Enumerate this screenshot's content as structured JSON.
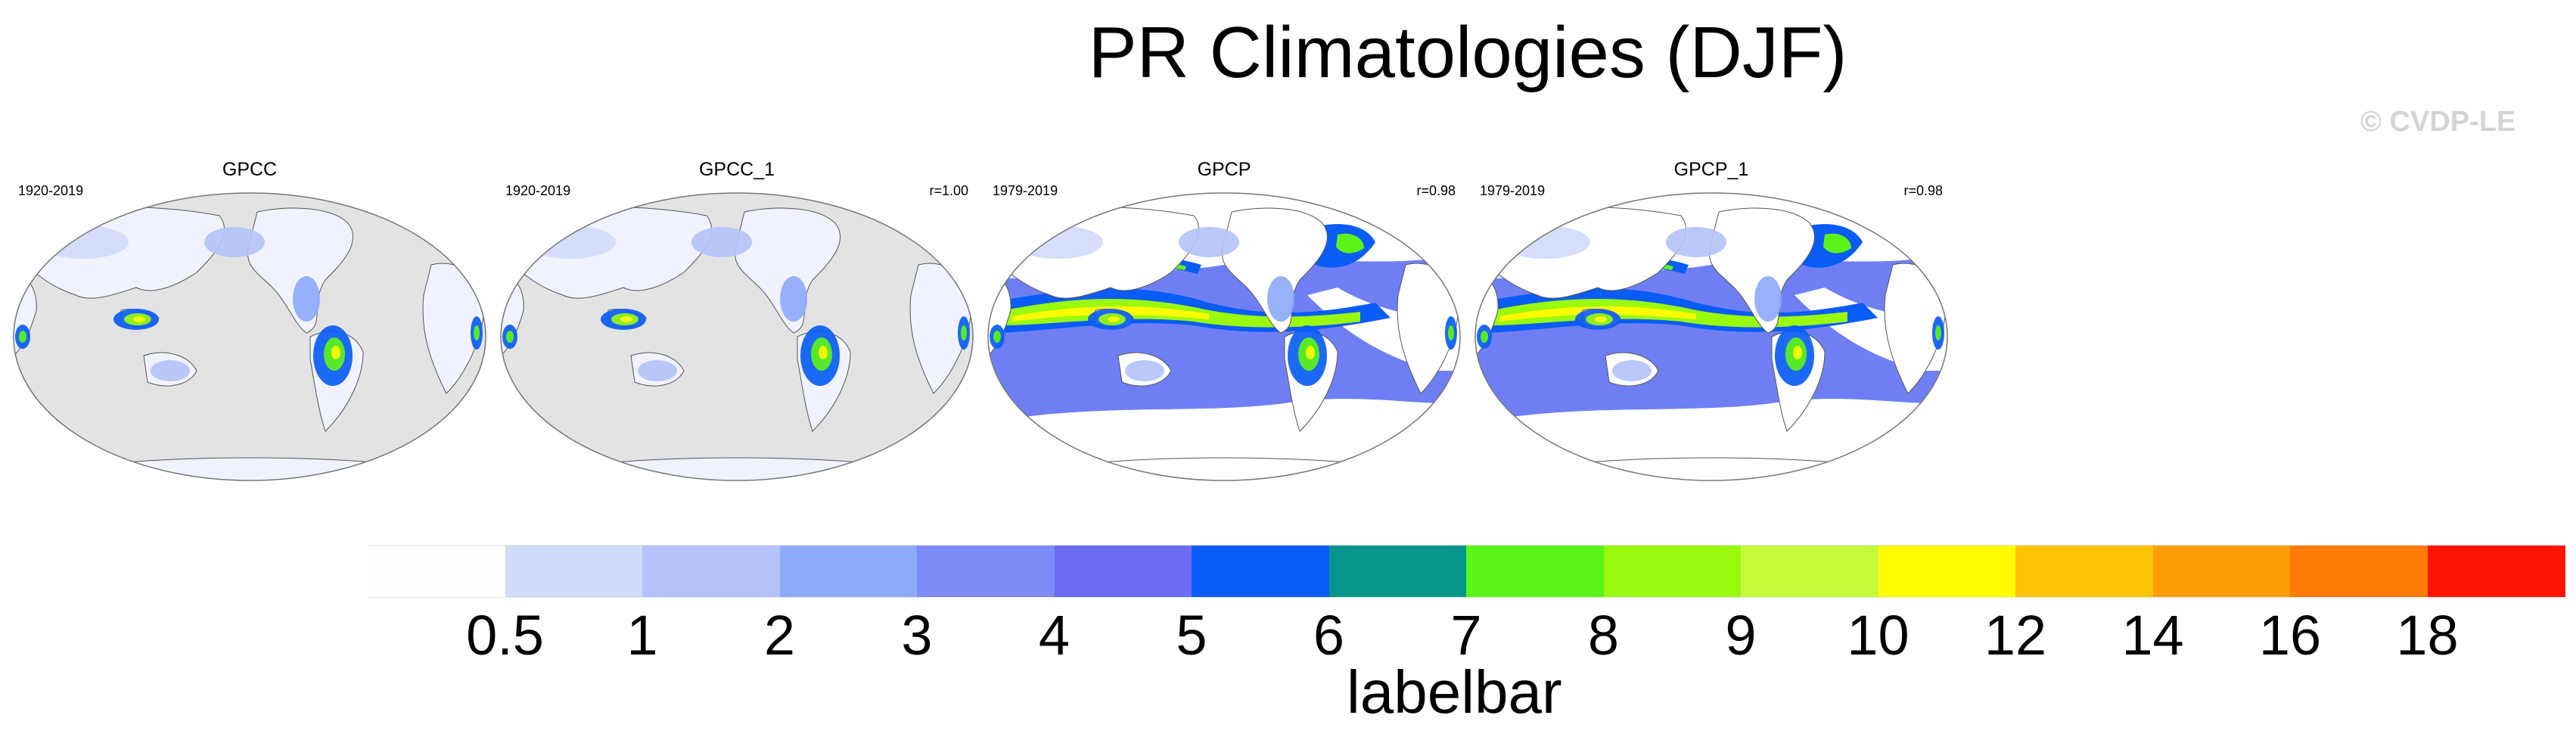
{
  "title": "PR Climatologies (DJF)",
  "watermark": "© CVDP-LE",
  "panels": [
    {
      "name": "GPCC",
      "period": "1920-2019",
      "corr": "",
      "style": "land"
    },
    {
      "name": "GPCC_1",
      "period": "1920-2019",
      "corr": "r=1.00",
      "style": "land"
    },
    {
      "name": "GPCP",
      "period": "1979-2019",
      "corr": "r=0.98",
      "style": "global"
    },
    {
      "name": "GPCP_1",
      "period": "1979-2019",
      "corr": "r=0.98",
      "style": "global"
    }
  ],
  "labelbar": {
    "title": "labelbar",
    "ticks": [
      "0.5",
      "1",
      "2",
      "3",
      "4",
      "5",
      "6",
      "7",
      "8",
      "9",
      "10",
      "12",
      "14",
      "16",
      "18"
    ],
    "colors": [
      "#fdfdfd",
      "#d3dbfb",
      "#b4c3fa",
      "#8faafb",
      "#7d8cf6",
      "#6a6cf2",
      "#0a5cf6",
      "#06968c",
      "#5cf318",
      "#99f90f",
      "#c4fa39",
      "#fdfb01",
      "#fcc402",
      "#fd9e06",
      "#fd7b06",
      "#fd1303"
    ]
  }
}
